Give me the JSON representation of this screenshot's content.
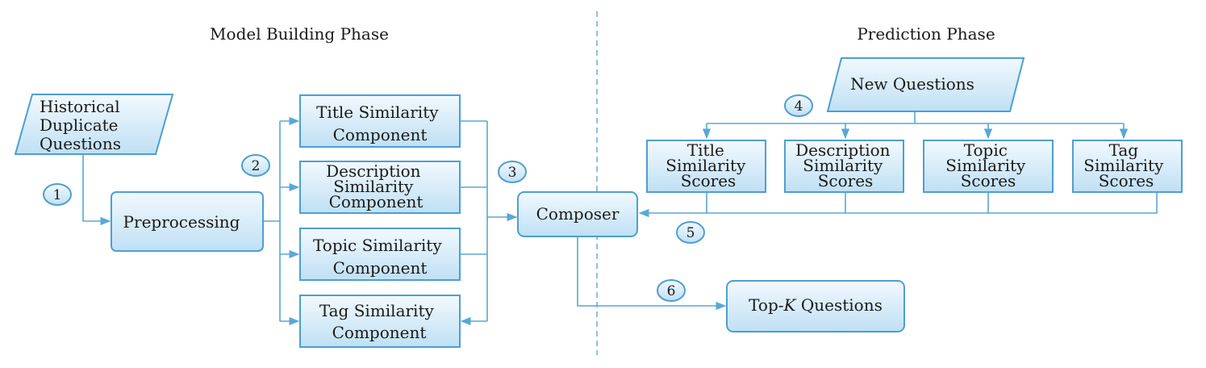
{
  "phases": {
    "model_building": "Model Building Phase",
    "prediction": "Prediction Phase"
  },
  "nodes": {
    "historical": [
      "Historical",
      "Duplicate",
      "Questions"
    ],
    "preprocessing": [
      "Preprocessing"
    ],
    "title_component": [
      "Title Similarity",
      "Component"
    ],
    "description_component": [
      "Description",
      "Similarity",
      "Component"
    ],
    "topic_component": [
      "Topic Similarity",
      "Component"
    ],
    "tag_component": [
      "Tag Similarity",
      "Component"
    ],
    "composer": [
      "Composer"
    ],
    "new_questions": [
      "New Questions"
    ],
    "title_scores": [
      "Title",
      "Similarity",
      "Scores"
    ],
    "description_scores": [
      "Description",
      "Similarity",
      "Scores"
    ],
    "topic_scores": [
      "Topic",
      "Similarity",
      "Scores"
    ],
    "tag_scores": [
      "Tag",
      "Similarity",
      "Scores"
    ],
    "topk": {
      "prefix": "Top-",
      "k": "K",
      "suffix": " Questions"
    }
  },
  "steps": [
    "1",
    "2",
    "3",
    "4",
    "5",
    "6"
  ],
  "colors": {
    "box_fill_top": "#f2f9fe",
    "box_fill_bottom": "#bfe0f4",
    "box_stroke": "#4e9fd0",
    "arrow": "#5aa7d6",
    "divider": "#6aaed8"
  }
}
